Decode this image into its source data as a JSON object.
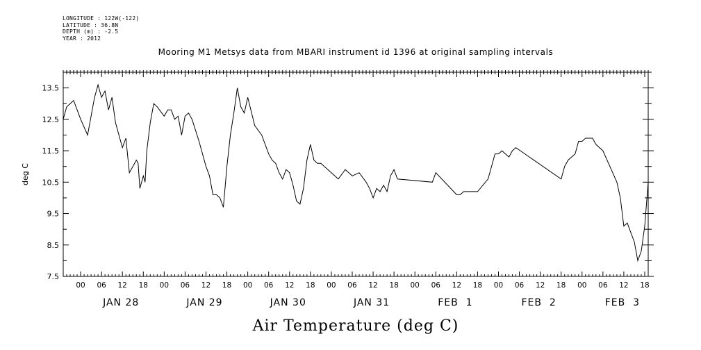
{
  "header": {
    "longitude": "LONGITUDE : 122W(-122)",
    "latitude": "LATITUDE : 36.8N",
    "depth": "DEPTH (m) : -2.5",
    "year": "YEAR : 2012"
  },
  "chart_data": {
    "type": "line",
    "title": "Mooring M1 Metsys data from MBARI instrument id 1396 at original sampling intervals",
    "xlabel": "Air Temperature (deg C)",
    "ylabel": "deg C",
    "ylim": [
      7.5,
      14.0
    ],
    "y_ticks": [
      "7.5",
      "8.5",
      "9.5",
      "10.5",
      "11.5",
      "12.5",
      "13.5"
    ],
    "x_range_hours": [
      "2012-01-27T19:00",
      "2012-02-03T19:00"
    ],
    "x_hour_labels": [
      "00",
      "06",
      "12",
      "18"
    ],
    "x_day_labels": [
      "JAN 28",
      "JAN 29",
      "JAN 30",
      "JAN 31",
      "FEB  1",
      "FEB  2",
      "FEB  3"
    ],
    "grid": false,
    "series": [
      {
        "x": [
          "2012-01-27T19:00",
          "2012-01-27T20:00",
          "2012-01-27T22:00",
          "2012-01-28T00:00",
          "2012-01-28T02:00",
          "2012-01-28T03:00",
          "2012-01-28T04:00",
          "2012-01-28T05:00",
          "2012-01-28T06:00",
          "2012-01-28T07:00",
          "2012-01-28T08:00",
          "2012-01-28T09:00",
          "2012-01-28T10:00",
          "2012-01-28T11:00",
          "2012-01-28T12:00",
          "2012-01-28T13:00",
          "2012-01-28T14:00",
          "2012-01-28T16:00",
          "2012-01-28T16:30",
          "2012-01-28T17:00",
          "2012-01-28T18:00",
          "2012-01-28T18:30",
          "2012-01-28T19:00",
          "2012-01-28T20:00",
          "2012-01-28T21:00",
          "2012-01-28T22:00",
          "2012-01-29T00:00",
          "2012-01-29T01:00",
          "2012-01-29T02:00",
          "2012-01-29T03:00",
          "2012-01-29T04:00",
          "2012-01-29T05:00",
          "2012-01-29T06:00",
          "2012-01-29T07:00",
          "2012-01-29T08:00",
          "2012-01-29T10:00",
          "2012-01-29T12:00",
          "2012-01-29T13:00",
          "2012-01-29T14:00",
          "2012-01-29T15:00",
          "2012-01-29T16:00",
          "2012-01-29T17:00",
          "2012-01-29T18:00",
          "2012-01-29T19:00",
          "2012-01-29T20:00",
          "2012-01-29T21:00",
          "2012-01-29T22:00",
          "2012-01-29T23:00",
          "2012-01-30T00:00",
          "2012-01-30T02:00",
          "2012-01-30T04:00",
          "2012-01-30T06:00",
          "2012-01-30T07:00",
          "2012-01-30T08:00",
          "2012-01-30T09:00",
          "2012-01-30T10:00",
          "2012-01-30T11:00",
          "2012-01-30T12:00",
          "2012-01-30T13:00",
          "2012-01-30T14:00",
          "2012-01-30T15:00",
          "2012-01-30T16:00",
          "2012-01-30T17:00",
          "2012-01-30T18:00",
          "2012-01-30T19:00",
          "2012-01-30T20:00",
          "2012-01-30T21:00",
          "2012-01-30T22:00",
          "2012-01-31T00:00",
          "2012-01-31T02:00",
          "2012-01-31T04:00",
          "2012-01-31T06:00",
          "2012-01-31T08:00",
          "2012-01-31T10:00",
          "2012-01-31T11:00",
          "2012-01-31T12:00",
          "2012-01-31T13:00",
          "2012-01-31T14:00",
          "2012-01-31T15:00",
          "2012-01-31T16:00",
          "2012-01-31T17:00",
          "2012-01-31T18:00",
          "2012-01-31T19:00",
          "2012-02-01T05:00",
          "2012-02-01T06:00",
          "2012-02-01T12:00",
          "2012-02-01T13:00",
          "2012-02-01T14:00",
          "2012-02-01T18:00",
          "2012-02-01T21:00",
          "2012-02-01T23:00",
          "2012-02-02T00:00",
          "2012-02-02T01:00",
          "2012-02-02T02:00",
          "2012-02-02T03:00",
          "2012-02-02T04:00",
          "2012-02-02T05:00",
          "2012-02-02T18:00",
          "2012-02-02T19:00",
          "2012-02-02T20:00",
          "2012-02-02T22:00",
          "2012-02-02T23:00",
          "2012-02-03T00:00",
          "2012-02-03T01:00",
          "2012-02-03T02:00",
          "2012-02-03T03:00",
          "2012-02-03T04:00",
          "2012-02-03T06:00",
          "2012-02-03T08:00",
          "2012-02-03T10:00",
          "2012-02-03T11:00",
          "2012-02-03T12:00",
          "2012-02-03T13:00",
          "2012-02-03T14:00",
          "2012-02-03T15:00",
          "2012-02-03T16:00",
          "2012-02-03T17:00",
          "2012-02-03T18:00",
          "2012-02-03T19:00"
        ],
        "y": [
          12.5,
          12.9,
          13.1,
          12.5,
          12.0,
          12.6,
          13.2,
          13.6,
          13.2,
          13.4,
          12.8,
          13.2,
          12.4,
          12.0,
          11.6,
          11.9,
          10.8,
          11.2,
          11.1,
          10.3,
          10.7,
          10.5,
          11.5,
          12.4,
          13.0,
          12.9,
          12.6,
          12.8,
          12.8,
          12.5,
          12.6,
          12.0,
          12.6,
          12.7,
          12.5,
          11.8,
          11.0,
          10.7,
          10.1,
          10.1,
          10.0,
          9.7,
          11.0,
          12.0,
          12.7,
          13.5,
          12.9,
          12.7,
          13.2,
          12.3,
          12.0,
          11.4,
          11.2,
          11.1,
          10.8,
          10.6,
          10.9,
          10.8,
          10.4,
          9.9,
          9.8,
          10.3,
          11.2,
          11.7,
          11.2,
          11.1,
          11.1,
          11.0,
          10.8,
          10.6,
          10.9,
          10.7,
          10.8,
          10.5,
          10.3,
          10.0,
          10.3,
          10.2,
          10.4,
          10.2,
          10.7,
          10.9,
          10.6,
          10.5,
          10.8,
          10.1,
          10.1,
          10.2,
          10.2,
          10.6,
          11.4,
          11.4,
          11.5,
          11.4,
          11.3,
          11.5,
          11.6,
          10.6,
          11.0,
          11.2,
          11.4,
          11.8,
          11.8,
          11.9,
          11.9,
          11.9,
          11.7,
          11.5,
          11.0,
          10.5,
          10.0,
          9.1,
          9.2,
          8.9,
          8.6,
          8.0,
          8.3,
          9.1,
          10.5
        ]
      }
    ]
  }
}
